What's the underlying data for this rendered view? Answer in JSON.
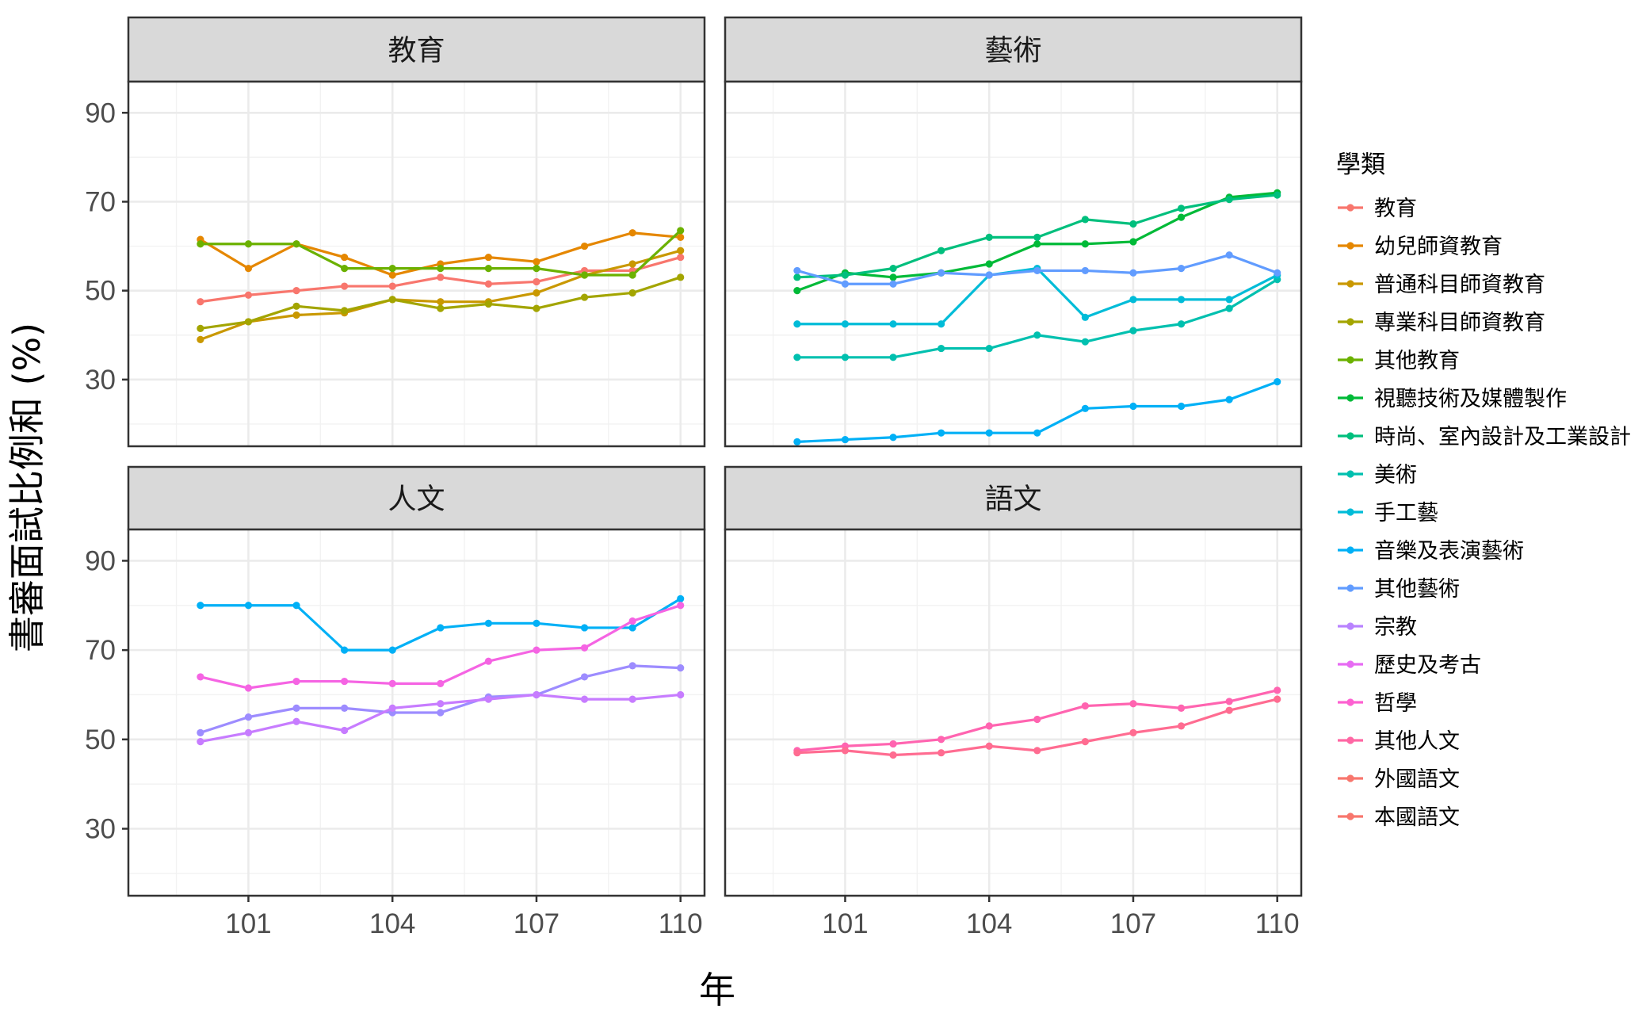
{
  "chart_data": {
    "type": "line",
    "title": "",
    "xlabel": "年",
    "ylabel": "書審面試比例和 (%)",
    "x": [
      100,
      101,
      102,
      103,
      104,
      105,
      106,
      107,
      108,
      109,
      110
    ],
    "x_ticks": [
      101,
      104,
      107,
      110
    ],
    "x_tick_labels": [
      "101",
      "104",
      "107",
      "110"
    ],
    "xlim": [
      98.5,
      110.5
    ],
    "y_ticks": [
      30,
      50,
      70,
      90
    ],
    "y_tick_labels": [
      "30",
      "50",
      "70",
      "90"
    ],
    "ylim": [
      15,
      97
    ],
    "grid": true,
    "legend_title": "學類",
    "legend_position": "right",
    "legend": [
      {
        "name": "教育",
        "color": "#F8766D"
      },
      {
        "name": "幼兒師資教育",
        "color": "#E58700"
      },
      {
        "name": "普通科目師資教育",
        "color": "#C99800"
      },
      {
        "name": "專業科目師資教育",
        "color": "#A3A500"
      },
      {
        "name": "其他教育",
        "color": "#6BB100"
      },
      {
        "name": "視聽技術及媒體製作",
        "color": "#00BA38"
      },
      {
        "name": "時尚、室內設計及工業設計",
        "color": "#00BF7D"
      },
      {
        "name": "美術",
        "color": "#00C0AF"
      },
      {
        "name": "手工藝",
        "color": "#00BCD8"
      },
      {
        "name": "音樂及表演藝術",
        "color": "#00B0F6"
      },
      {
        "name": "其他藝術",
        "color": "#619CFF"
      },
      {
        "name": "宗教",
        "color": "#B983FF"
      },
      {
        "name": "歷史及考古",
        "color": "#E76BF3"
      },
      {
        "name": "哲學",
        "color": "#FD61D1"
      },
      {
        "name": "其他人文",
        "color": "#FF67A4"
      },
      {
        "name": "外國語文",
        "color": "#F8766D"
      },
      {
        "name": "本國語文",
        "color": "#F8766D"
      }
    ],
    "panels": [
      {
        "title": "教育",
        "series": [
          {
            "name": "教育",
            "color": "#F8766D",
            "values": [
              47.5,
              49,
              50,
              51,
              51,
              53,
              51.5,
              52,
              54.5,
              54.5,
              57.5
            ]
          },
          {
            "name": "幼兒師資教育",
            "color": "#E58700",
            "values": [
              61.5,
              55,
              60.5,
              57.5,
              53.5,
              56,
              57.5,
              56.5,
              60,
              63,
              62
            ]
          },
          {
            "name": "普通科目師資教育",
            "color": "#C99800",
            "values": [
              39,
              43,
              44.5,
              45,
              48,
              47.5,
              47.5,
              49.5,
              53.5,
              56,
              59
            ]
          },
          {
            "name": "專業科目師資教育",
            "color": "#A3A500",
            "values": [
              41.5,
              43,
              46.5,
              45.5,
              48,
              46,
              47,
              46,
              48.5,
              49.5,
              53
            ]
          },
          {
            "name": "其他教育",
            "color": "#6BB100",
            "values": [
              60.5,
              60.5,
              60.5,
              55,
              55,
              55,
              55,
              55,
              53.5,
              53.5,
              63.5
            ]
          }
        ]
      },
      {
        "title": "藝術",
        "series": [
          {
            "name": "視聽技術及媒體製作",
            "color": "#00BA38",
            "values": [
              50,
              54,
              53,
              54,
              56,
              60.5,
              60.5,
              61,
              66.5,
              71,
              72
            ]
          },
          {
            "name": "時尚、室內設計及工業設計",
            "color": "#00BF7D",
            "values": [
              53,
              53.5,
              55,
              59,
              62,
              62,
              66,
              65,
              68.5,
              70.5,
              71.5
            ]
          },
          {
            "name": "美術",
            "color": "#00C0AF",
            "values": [
              35,
              35,
              35,
              37,
              37,
              40,
              38.5,
              41,
              42.5,
              46,
              52.5
            ]
          },
          {
            "name": "手工藝",
            "color": "#00BCD8",
            "values": [
              42.5,
              42.5,
              42.5,
              42.5,
              53.5,
              55,
              44,
              48,
              48,
              48,
              53.5
            ]
          },
          {
            "name": "音樂及表演藝術",
            "color": "#00B0F6",
            "values": [
              16,
              16.5,
              17,
              18,
              18,
              18,
              23.5,
              24,
              24,
              25.5,
              29.5
            ]
          },
          {
            "name": "其他藝術",
            "color": "#619CFF",
            "values": [
              54.5,
              51.5,
              51.5,
              54,
              53.5,
              54.5,
              54.5,
              54,
              55,
              58,
              54
            ]
          }
        ]
      },
      {
        "title": "人文",
        "series": [
          {
            "name": "宗教",
            "color": "#00B0F6",
            "values": [
              80,
              80,
              80,
              70,
              70,
              75,
              76,
              76,
              75,
              75,
              81.5
            ]
          },
          {
            "name": "歷史及考古",
            "color": "#9D8CFF",
            "values": [
              51.5,
              55,
              57,
              57,
              56,
              56,
              59.5,
              60,
              64,
              66.5,
              66
            ]
          },
          {
            "name": "哲學",
            "color": "#C77CFF",
            "values": [
              49.5,
              51.5,
              54,
              52,
              57,
              58,
              59,
              60,
              59,
              59,
              60
            ]
          },
          {
            "name": "其他人文",
            "color": "#F564E3",
            "values": [
              64,
              61.5,
              63,
              63,
              62.5,
              62.5,
              67.5,
              70,
              70.5,
              76.5,
              80
            ]
          }
        ]
      },
      {
        "title": "語文",
        "series": [
          {
            "name": "外國語文",
            "color": "#FF64B0",
            "values": [
              47.5,
              48.5,
              49,
              50,
              53,
              54.5,
              57.5,
              58,
              57,
              58.5,
              61
            ]
          },
          {
            "name": "本國語文",
            "color": "#FF6C91",
            "values": [
              47,
              47.5,
              46.5,
              47,
              48.5,
              47.5,
              49.5,
              51.5,
              53,
              56.5,
              59
            ]
          }
        ]
      }
    ]
  }
}
